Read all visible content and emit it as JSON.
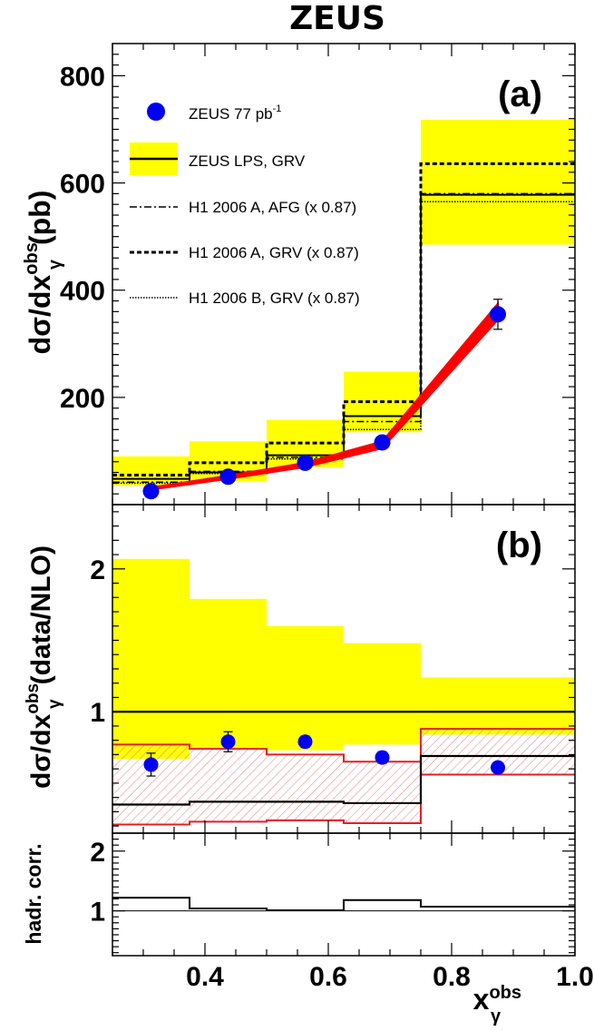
{
  "experiment": "ZEUS",
  "x_axis_label": "x",
  "x_axis_sup": "obs",
  "x_axis_sub": "γ",
  "chart_data": [
    {
      "panel": "(a)",
      "type": "line",
      "ylabel_main": "dσ/dx",
      "ylabel_sup": "obs",
      "ylabel_sub": "γ",
      "ylabel_unit": "(pb)",
      "xlim": [
        0.25,
        1.0
      ],
      "ylim": [
        0,
        860
      ],
      "x_ticks": [
        "0.4",
        "0.6",
        "0.8",
        "1.0"
      ],
      "y_ticks": [
        "200",
        "400",
        "600",
        "800"
      ],
      "bin_edges": [
        0.25,
        0.375,
        0.5,
        0.625,
        0.75,
        1.0
      ],
      "legend": [
        {
          "label": "ZEUS 77 pb",
          "sup": "-1",
          "style": "marker"
        },
        {
          "label": "ZEUS LPS, GRV",
          "style": "band-line"
        },
        {
          "label": "H1 2006 A, AFG (x 0.87)",
          "style": "dashdot"
        },
        {
          "label": "H1 2006 A, GRV (x 0.87)",
          "style": "dashed"
        },
        {
          "label": "H1 2006 B, GRV (x 0.87)",
          "style": "dotted"
        }
      ],
      "data_points": {
        "name": "ZEUS 77 pb-1",
        "x": [
          0.3125,
          0.4375,
          0.5625,
          0.6875,
          0.875
        ],
        "y": [
          25,
          52,
          78,
          116,
          355
        ],
        "err": [
          3,
          4,
          5,
          7,
          28
        ]
      },
      "nlo_red_band": {
        "x": [
          0.3125,
          0.4375,
          0.5625,
          0.6875,
          0.875
        ],
        "low": [
          28,
          48,
          70,
          105,
          345
        ],
        "high": [
          32,
          54,
          78,
          118,
          375
        ]
      },
      "zeus_lps_grv": {
        "band_low": [
          35,
          44,
          70,
          135,
          485
        ],
        "central": [
          48,
          60,
          92,
          165,
          578
        ],
        "band_high": [
          90,
          118,
          158,
          248,
          718
        ]
      },
      "h1_afg": [
        42,
        62,
        88,
        155,
        580
      ],
      "h1_grv_a": [
        55,
        78,
        115,
        192,
        636
      ],
      "h1_grv_b": [
        40,
        58,
        85,
        140,
        565
      ]
    },
    {
      "panel": "(b)",
      "type": "line",
      "ylabel_main": "dσ/dx",
      "ylabel_sup": "obs",
      "ylabel_sub": "γ",
      "ylabel_unit": "(data/NLO)",
      "xlim": [
        0.25,
        1.0
      ],
      "ylim": [
        0.15,
        2.45
      ],
      "y_ticks": [
        "1",
        "2"
      ],
      "bin_edges": [
        0.25,
        0.375,
        0.5,
        0.625,
        0.75,
        1.0
      ],
      "ratio_points": {
        "x": [
          0.3125,
          0.4375,
          0.5625,
          0.6875,
          0.875
        ],
        "y": [
          0.63,
          0.79,
          0.79,
          0.68,
          0.61
        ],
        "err": [
          0.08,
          0.07,
          0.04,
          0.04,
          0.03
        ]
      },
      "yellow_band": {
        "low": [
          0.67,
          0.74,
          0.73,
          0.77,
          0.84
        ],
        "high": [
          2.07,
          1.79,
          1.6,
          1.48,
          1.24
        ]
      },
      "hatched_band": {
        "low": [
          0.21,
          0.23,
          0.24,
          0.22,
          0.56
        ],
        "high": [
          0.77,
          0.74,
          0.7,
          0.65,
          0.88
        ]
      },
      "black_line": [
        0.35,
        0.37,
        0.37,
        0.36,
        0.69
      ],
      "unity": 1.0
    },
    {
      "panel": "hadr",
      "type": "line",
      "ylabel": "hadr. corr.",
      "xlim": [
        0.25,
        1.0
      ],
      "ylim": [
        0.25,
        2.3
      ],
      "y_ticks": [
        "1",
        "2"
      ],
      "bin_edges": [
        0.25,
        0.375,
        0.5,
        0.625,
        0.75,
        1.0
      ],
      "values": [
        1.22,
        1.04,
        1.01,
        1.18,
        1.07
      ],
      "unity": 1.0
    }
  ],
  "colors": {
    "points": "#0000f0",
    "yellow_band": "#ffff00",
    "nlo_red": "#ff0000",
    "hatch_red": "#e02020"
  }
}
